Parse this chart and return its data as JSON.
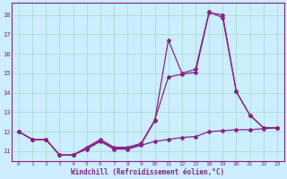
{
  "xlabel": "Windchill (Refroidissement éolien,°C)",
  "background_color": "#cceeff",
  "grid_color": "#aaddcc",
  "line_color": "#882288",
  "xlabels": [
    "0",
    "1",
    "2",
    "3",
    "4",
    "5",
    "6",
    "7",
    "8",
    "9",
    "10",
    "11",
    "12",
    "13",
    "18",
    "19",
    "20",
    "21",
    "22",
    "23"
  ],
  "yticks": [
    11,
    12,
    13,
    14,
    15,
    16,
    17,
    18
  ],
  "ylim": [
    10.5,
    18.6
  ],
  "series1_y": [
    12.0,
    11.6,
    11.6,
    10.8,
    10.8,
    11.15,
    11.55,
    11.15,
    11.15,
    11.35,
    12.55,
    16.7,
    15.0,
    15.2,
    18.15,
    17.85,
    14.05,
    12.85,
    12.2,
    12.2
  ],
  "series2_y": [
    12.0,
    11.6,
    11.6,
    10.8,
    10.8,
    11.2,
    11.6,
    11.2,
    11.2,
    11.4,
    12.6,
    14.8,
    14.95,
    15.05,
    18.1,
    18.0,
    14.05,
    12.85,
    12.2,
    12.2
  ],
  "series3_y": [
    12.0,
    11.6,
    11.6,
    10.8,
    10.8,
    11.1,
    11.5,
    11.1,
    11.1,
    11.3,
    11.5,
    11.6,
    11.7,
    11.75,
    12.0,
    12.05,
    12.1,
    12.1,
    12.15,
    12.2
  ]
}
